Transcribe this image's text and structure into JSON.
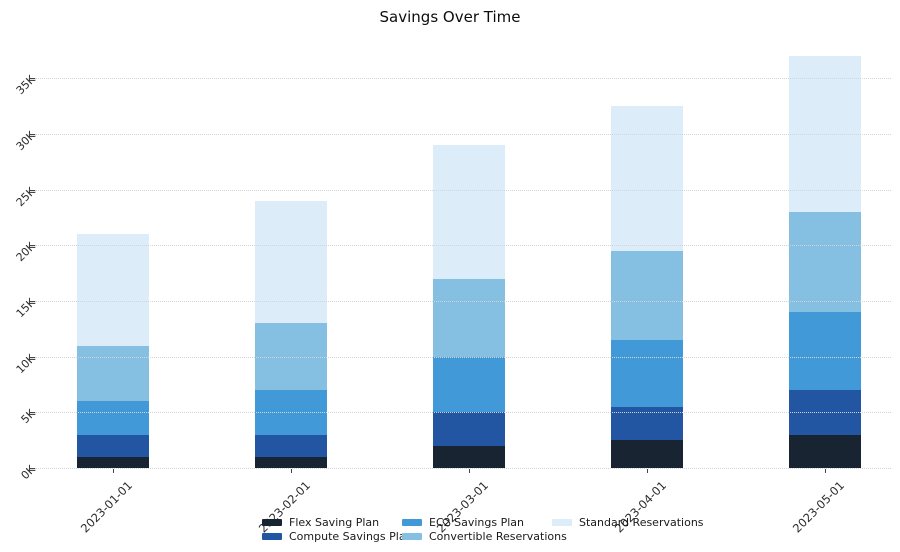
{
  "chart_data": {
    "type": "bar",
    "stacked": true,
    "title": "Savings Over Time",
    "categories": [
      "2023-01-01",
      "2023-02-01",
      "2023-03-01",
      "2023-04-01",
      "2023-05-01"
    ],
    "series": [
      {
        "name": "Flex Saving Plan",
        "color": "#192433",
        "values": [
          1000,
          1000,
          2000,
          2500,
          3000
        ]
      },
      {
        "name": "Compute Savings Plan",
        "color": "#2255a2",
        "values": [
          2000,
          2000,
          3000,
          3000,
          4000
        ]
      },
      {
        "name": "EC2 Savings Plan",
        "color": "#4299d8",
        "values": [
          3000,
          4000,
          5000,
          6000,
          7000
        ]
      },
      {
        "name": "Convertible Reservations",
        "color": "#85c0e3",
        "values": [
          5000,
          6000,
          7000,
          8000,
          9000
        ]
      },
      {
        "name": "Standard Reservations",
        "color": "#dcedf9",
        "values": [
          10000,
          11000,
          12000,
          13000,
          14000
        ]
      }
    ],
    "totals": [
      21000,
      24000,
      29000,
      32500,
      37000
    ],
    "xlabel": "",
    "ylabel": "",
    "y_ticks": [
      "0K",
      "5K",
      "10K",
      "15K",
      "20K",
      "25K",
      "30K",
      "35K"
    ],
    "y_tick_values": [
      0,
      5000,
      10000,
      15000,
      20000,
      25000,
      30000,
      35000
    ],
    "ylim": [
      0,
      38400
    ],
    "grid": {
      "axis": "y",
      "style": "dotted",
      "color": "#d4d4d4",
      "above_bars": true
    },
    "legend_position": "bottom",
    "background": "#ffffff"
  }
}
